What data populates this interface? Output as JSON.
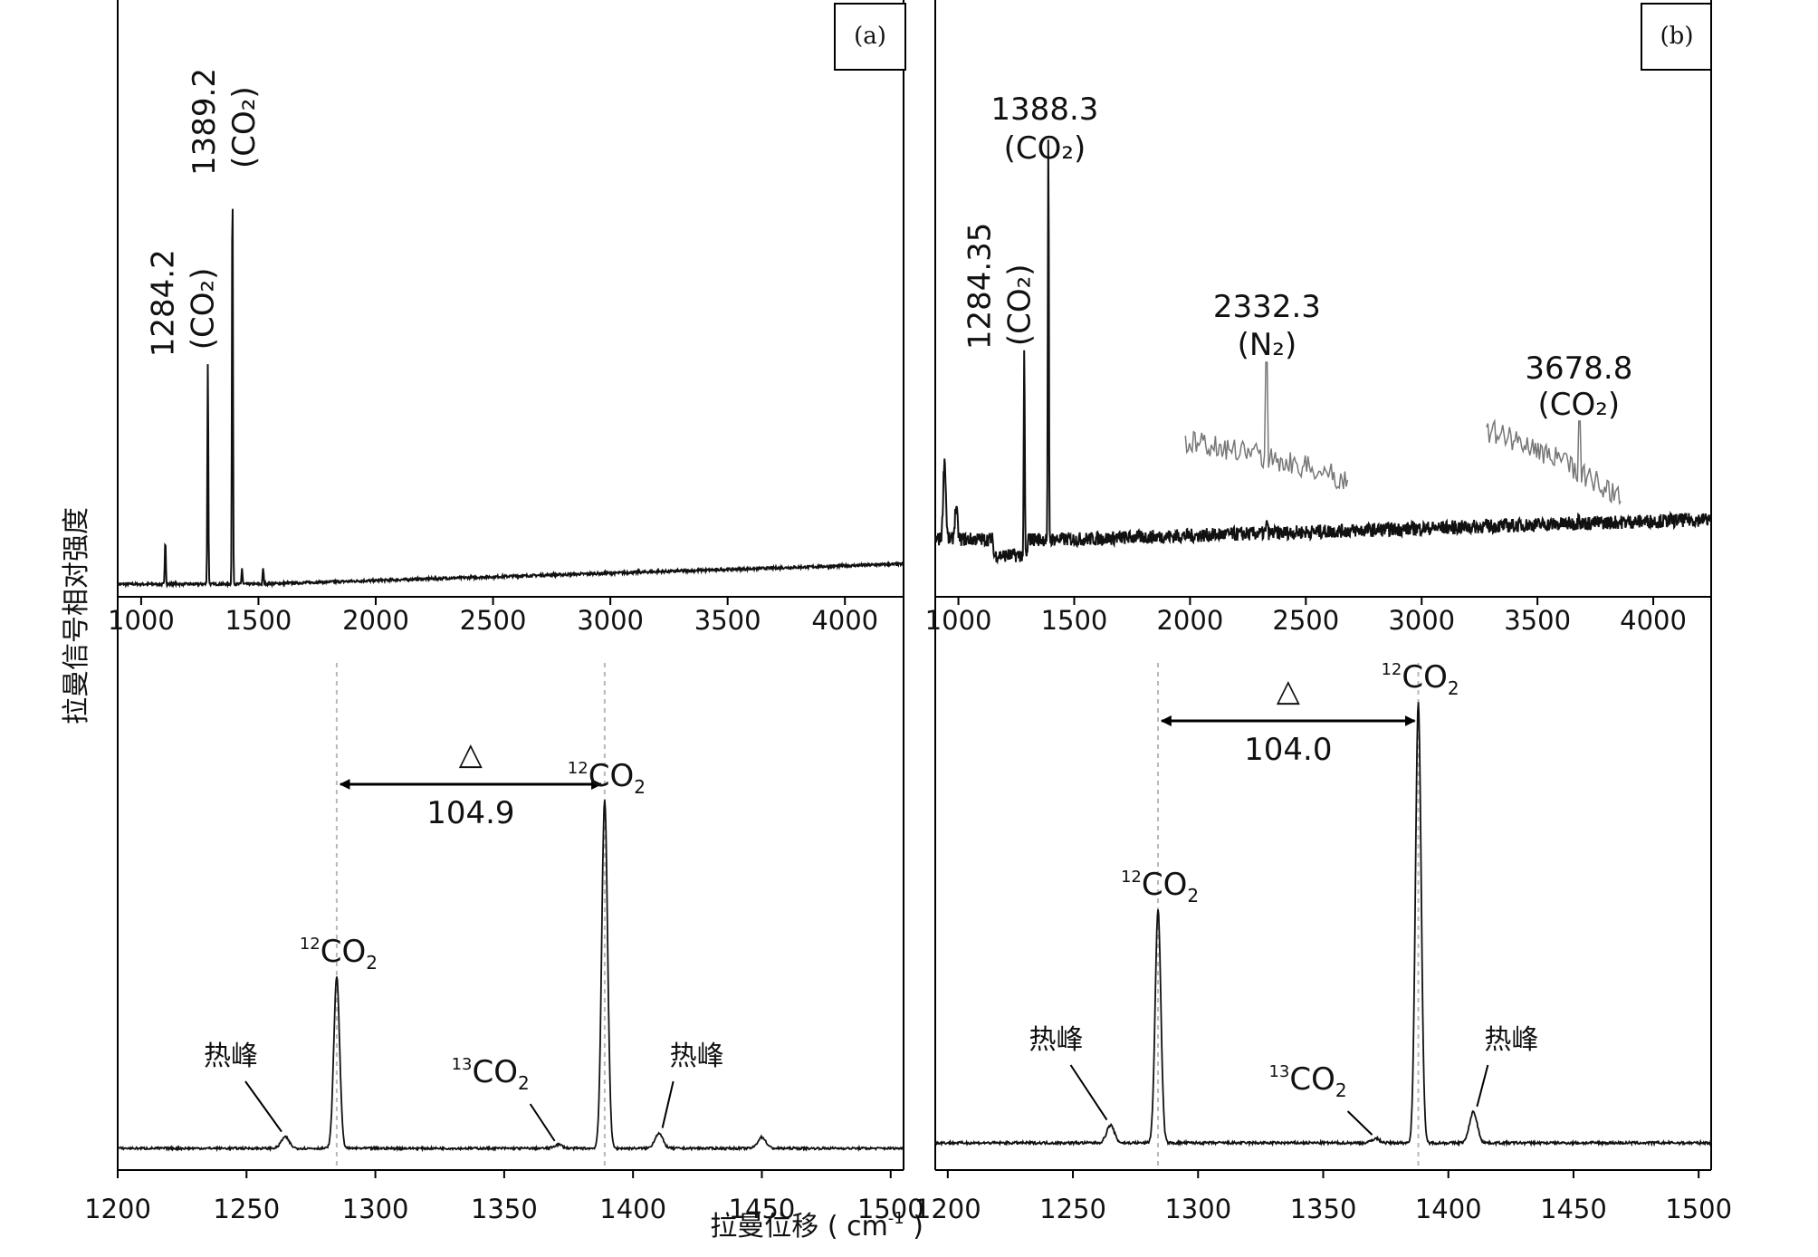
{
  "figure": {
    "ylabel": "拉曼信号相对强度",
    "xlabel": "拉曼位移 ( cm",
    "xlabel_sup": "-1",
    "xlabel_tail": " )"
  },
  "chart_data": [
    {
      "id": "a-top",
      "panel": "(a)",
      "type": "line",
      "x_range": [
        900,
        4250
      ],
      "x_ticks": [
        1000,
        1500,
        2000,
        2500,
        3000,
        3500,
        4000
      ],
      "x_tick_labels": [
        "1000",
        "1500",
        "2000",
        "2500",
        "3000",
        "3500",
        "4000"
      ],
      "peaks": [
        {
          "x": 1103,
          "height": 0.11
        },
        {
          "x": 1284.2,
          "height": 0.55,
          "label": "1284.2",
          "sub": "(CO₂)"
        },
        {
          "x": 1389.2,
          "height": 1.0,
          "label": "1389.2",
          "sub": "(CO₂)"
        },
        {
          "x": 1430,
          "height": 0.04
        },
        {
          "x": 1520,
          "height": 0.04
        }
      ]
    },
    {
      "id": "b-top",
      "panel": "(b)",
      "type": "line",
      "x_range": [
        900,
        4250
      ],
      "x_ticks": [
        1000,
        1500,
        2000,
        2500,
        3000,
        3500,
        4000
      ],
      "x_tick_labels": [
        "1000",
        "1500",
        "2000",
        "2500",
        "3000",
        "3500",
        "4000"
      ],
      "peaks": [
        {
          "x": 940,
          "height": 0.2
        },
        {
          "x": 990,
          "height": 0.08
        },
        {
          "x": 1284.35,
          "height": 0.52,
          "label": "1284.35",
          "sub": "(CO₂)"
        },
        {
          "x": 1388.3,
          "height": 1.0,
          "label": "1388.3",
          "sub": "(CO₂)"
        },
        {
          "x": 2332.3,
          "height": 0.04
        },
        {
          "x": 3678.8,
          "height": 0.04
        }
      ],
      "insets": [
        {
          "x_from": 1980,
          "x_to": 2680,
          "peak_x": 2332.3,
          "label": "2332.3",
          "sub": "(N₂)"
        },
        {
          "x_from": 3280,
          "x_to": 3860,
          "peak_x": 3678.8,
          "label": "3678.8",
          "sub": "(CO₂)"
        }
      ]
    },
    {
      "id": "a-bottom",
      "type": "line",
      "x_range": [
        1200,
        1505
      ],
      "x_ticks": [
        1200,
        1250,
        1300,
        1350,
        1400,
        1450,
        1500
      ],
      "x_tick_labels": [
        "1200",
        "1250",
        "1300",
        "1350",
        "1400",
        "1450",
        "1500"
      ],
      "peaks": [
        {
          "x": 1265,
          "height": 0.03,
          "label": "热峰"
        },
        {
          "x": 1285,
          "height": 0.46,
          "label": "12CO2"
        },
        {
          "x": 1371,
          "height": 0.01,
          "label": "13CO2"
        },
        {
          "x": 1389,
          "height": 0.93,
          "label": "12CO2"
        },
        {
          "x": 1410,
          "height": 0.04,
          "label": "热峰"
        },
        {
          "x": 1450,
          "height": 0.03
        }
      ],
      "delta": {
        "from": 1285,
        "to": 1389,
        "symbol": "△",
        "value": "104.9"
      }
    },
    {
      "id": "b-bottom",
      "type": "line",
      "x_range": [
        1195,
        1505
      ],
      "x_ticks": [
        1200,
        1250,
        1300,
        1350,
        1400,
        1450,
        1500
      ],
      "x_tick_labels": [
        "1200",
        "1250",
        "1300",
        "1350",
        "1400",
        "1450",
        "1500"
      ],
      "peaks": [
        {
          "x": 1265,
          "height": 0.04,
          "label": "热峰"
        },
        {
          "x": 1284,
          "height": 0.53,
          "label": "12CO2"
        },
        {
          "x": 1371,
          "height": 0.01,
          "label": "13CO2"
        },
        {
          "x": 1388,
          "height": 1.0,
          "label": "12CO2"
        },
        {
          "x": 1410,
          "height": 0.07,
          "label": "热峰"
        }
      ],
      "delta": {
        "from": 1284,
        "to": 1388,
        "symbol": "△",
        "value": "104.0"
      }
    }
  ]
}
